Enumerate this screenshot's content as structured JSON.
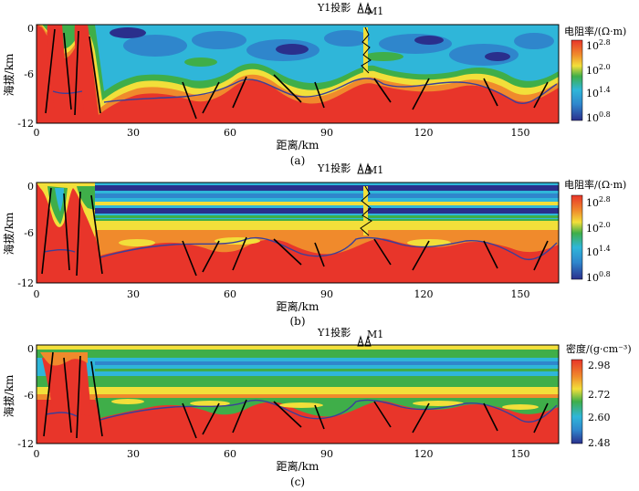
{
  "panels": [
    {
      "id": "a",
      "caption": "(a)",
      "well_labels": [
        "Y1投影",
        "M1"
      ],
      "ylabel": "海拔/km",
      "xlabel": "距离/km",
      "xticks": [
        "0",
        "30",
        "60",
        "90",
        "120",
        "150"
      ],
      "yticks": [
        "0",
        "-6",
        "-12"
      ],
      "colorbar": {
        "title": "电阻率/(Ω·m)",
        "labels": [
          {
            "base": "10",
            "exp": "2.8"
          },
          {
            "base": "10",
            "exp": "2.0"
          },
          {
            "base": "10",
            "exp": "1.4"
          },
          {
            "base": "10",
            "exp": "0.8"
          }
        ]
      }
    },
    {
      "id": "b",
      "caption": "(b)",
      "well_labels": [
        "Y1投影",
        "M1"
      ],
      "ylabel": "海拔/km",
      "xlabel": "距离/km",
      "xticks": [
        "0",
        "30",
        "60",
        "90",
        "120",
        "150"
      ],
      "yticks": [
        "0",
        "-6",
        "-12"
      ],
      "colorbar": {
        "title": "电阻率/(Ω·m)",
        "labels": [
          {
            "base": "10",
            "exp": "2.8"
          },
          {
            "base": "10",
            "exp": "2.0"
          },
          {
            "base": "10",
            "exp": "1.4"
          },
          {
            "base": "10",
            "exp": "0.8"
          }
        ]
      }
    },
    {
      "id": "c",
      "caption": "(c)",
      "well_labels": [
        "Y1投影",
        "M1"
      ],
      "ylabel": "海拔/km",
      "xlabel": "距离/km",
      "xticks": [
        "0",
        "30",
        "60",
        "90",
        "120",
        "150"
      ],
      "yticks": [
        "0",
        "-6",
        "-12"
      ],
      "colorbar": {
        "title": "密度/(g·cm⁻³)",
        "labels": [
          {
            "base": "2.98",
            "exp": ""
          },
          {
            "base": "2.72",
            "exp": ""
          },
          {
            "base": "2.60",
            "exp": ""
          },
          {
            "base": "2.48",
            "exp": ""
          }
        ]
      }
    }
  ],
  "colors": {
    "red": "#e8352a",
    "orange": "#f08a2c",
    "yellow": "#f2df3a",
    "green": "#3fae49",
    "cyan": "#2fb6d9",
    "blue": "#2f86cc",
    "darkblue": "#2a2f8c",
    "boundary": "#3b3f9a",
    "fault": "#000000"
  }
}
